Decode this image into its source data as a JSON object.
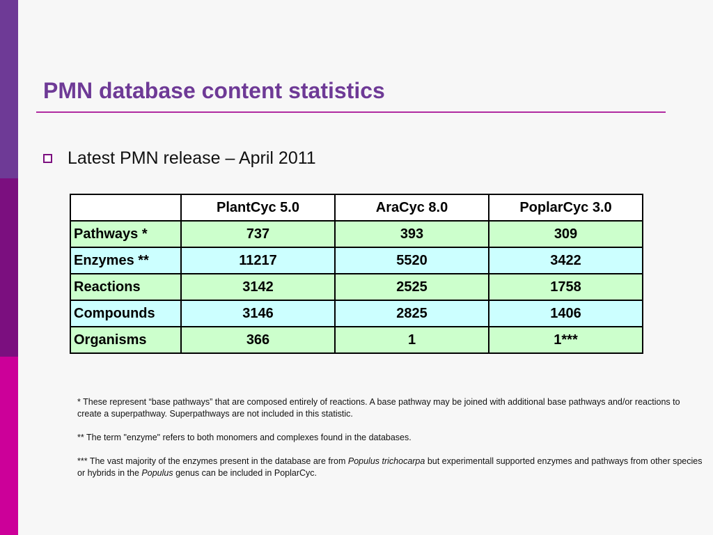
{
  "slide": {
    "title": "PMN database content statistics",
    "bullet": "Latest PMN release – April 2011"
  },
  "table": {
    "headers": [
      "",
      "PlantCyc 5.0",
      "AraCyc 8.0",
      "PoplarCyc 3.0"
    ],
    "rows": [
      {
        "label": "Pathways *",
        "values": [
          "737",
          "393",
          "309"
        ]
      },
      {
        "label": "Enzymes **",
        "values": [
          "11217",
          "5520",
          "3422"
        ]
      },
      {
        "label": "Reactions",
        "values": [
          "3142",
          "2525",
          "1758"
        ]
      },
      {
        "label": "Compounds",
        "values": [
          "3146",
          "2825",
          "1406"
        ]
      },
      {
        "label": "Organisms",
        "values": [
          "366",
          "1",
          "1***"
        ]
      }
    ]
  },
  "notes": {
    "note1": " * These represent “base pathways” that are composed entirely of reactions. A base pathway may be joined with additional base pathways and/or reactions to create a  superpathway. Superpathways are not included in this statistic.",
    "note2": " ** The term \"enzyme\" refers to both monomers and complexes found in the databases.",
    "note3_a": "*** The vast majority of the enzymes present in the database are from ",
    "note3_b": "Populus trichocarpa",
    "note3_c": " but experimentall supported enzymes and pathways from other species or hybrids in the ",
    "note3_d": "Populus",
    "note3_e": " genus can be included in PoplarCyc."
  },
  "colors": {
    "title": "#6e3a96",
    "row_green": "#ccffcc",
    "row_cyan": "#ccffff",
    "side_top": "#6e3a96",
    "side_mid": "#7b0f7f",
    "side_bottom": "#cc0099"
  }
}
